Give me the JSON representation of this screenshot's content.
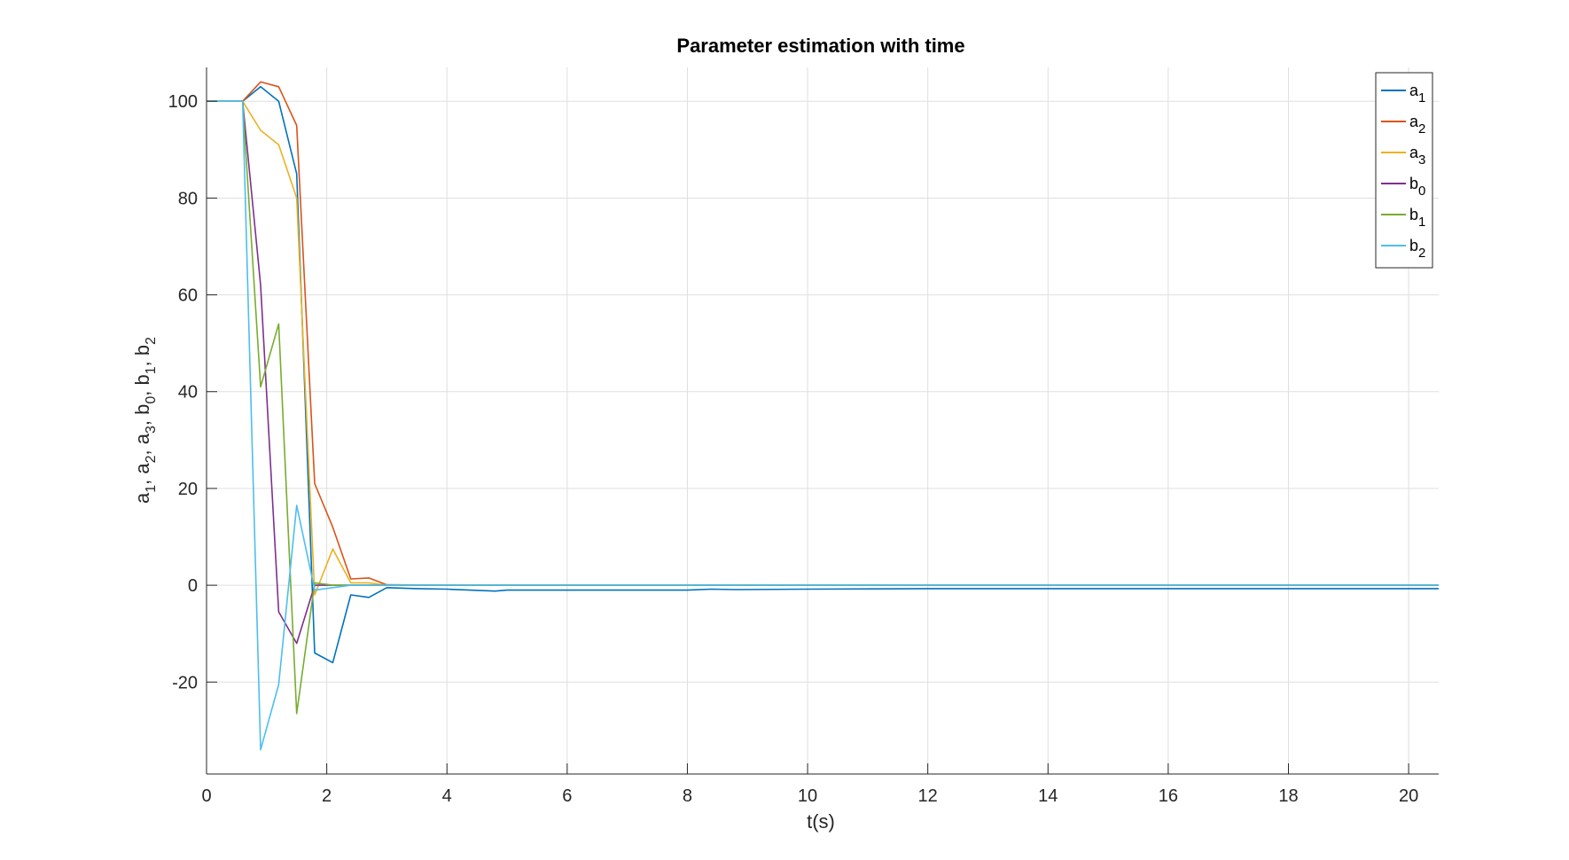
{
  "chart_data": {
    "type": "line",
    "title": "Parameter estimation with time",
    "xlabel": "t(s)",
    "ylabel": {
      "parts": [
        [
          "a",
          "1"
        ],
        [
          "a",
          "2"
        ],
        [
          "a",
          "3"
        ],
        [
          "b",
          "0"
        ],
        [
          "b",
          "1"
        ],
        [
          "b",
          "2"
        ]
      ],
      "separator": ", "
    },
    "xlim": [
      0,
      20.5
    ],
    "ylim": [
      -39,
      107
    ],
    "xticks": [
      0,
      2,
      4,
      6,
      8,
      10,
      12,
      14,
      16,
      18,
      20
    ],
    "yticks": [
      -20,
      0,
      20,
      40,
      60,
      80,
      100
    ],
    "grid": true,
    "legend": "top-right",
    "series": [
      {
        "name": "a",
        "sub": "1",
        "color": "#0072BD",
        "x": [
          0,
          0.6,
          0.9,
          1.2,
          1.5,
          1.8,
          2.1,
          2.4,
          2.7,
          3.0,
          3.5,
          4.0,
          4.8,
          5.0,
          6.0,
          8.0,
          8.4,
          8.8,
          10,
          12,
          14,
          16,
          18,
          20.5
        ],
        "y": [
          100,
          100,
          103,
          100,
          85,
          -14,
          -16,
          -2,
          -2.5,
          -0.5,
          -0.7,
          -0.8,
          -1.2,
          -1,
          -1,
          -1,
          -0.8,
          -0.9,
          -0.8,
          -0.7,
          -0.7,
          -0.7,
          -0.7,
          -0.7
        ]
      },
      {
        "name": "a",
        "sub": "2",
        "color": "#D95319",
        "x": [
          0,
          0.6,
          0.9,
          1.2,
          1.5,
          1.8,
          2.1,
          2.4,
          2.7,
          3.0,
          4.0,
          20.5
        ],
        "y": [
          100,
          100,
          104,
          103,
          95,
          21,
          12,
          1.3,
          1.5,
          0.1,
          0,
          0
        ]
      },
      {
        "name": "a",
        "sub": "3",
        "color": "#EDB120",
        "x": [
          0,
          0.6,
          0.9,
          1.2,
          1.5,
          1.8,
          2.1,
          2.4,
          2.7,
          3.0,
          20.5
        ],
        "y": [
          100,
          100,
          94,
          91,
          80,
          -2,
          7.5,
          0.5,
          0.5,
          0,
          0
        ]
      },
      {
        "name": "b",
        "sub": "0",
        "color": "#7E2F8E",
        "x": [
          0,
          0.6,
          0.9,
          1.2,
          1.5,
          1.8,
          2.1,
          2.4,
          3.0,
          20.5
        ],
        "y": [
          100,
          100,
          62,
          -5.5,
          -12,
          0,
          0,
          0,
          0,
          0
        ]
      },
      {
        "name": "b",
        "sub": "1",
        "color": "#77AC30",
        "x": [
          0,
          0.6,
          0.9,
          1.2,
          1.5,
          1.8,
          2.1,
          2.4,
          3.0,
          20.5
        ],
        "y": [
          100,
          100,
          41,
          54,
          -26.5,
          0.5,
          0,
          0,
          0,
          0
        ]
      },
      {
        "name": "b",
        "sub": "2",
        "color": "#4DBEEE",
        "x": [
          0,
          0.6,
          0.9,
          1.2,
          1.5,
          1.8,
          2.1,
          2.4,
          3.0,
          20.5
        ],
        "y": [
          100,
          100,
          -34,
          -20.5,
          16.5,
          -1,
          -0.5,
          0,
          0,
          0
        ]
      }
    ]
  }
}
